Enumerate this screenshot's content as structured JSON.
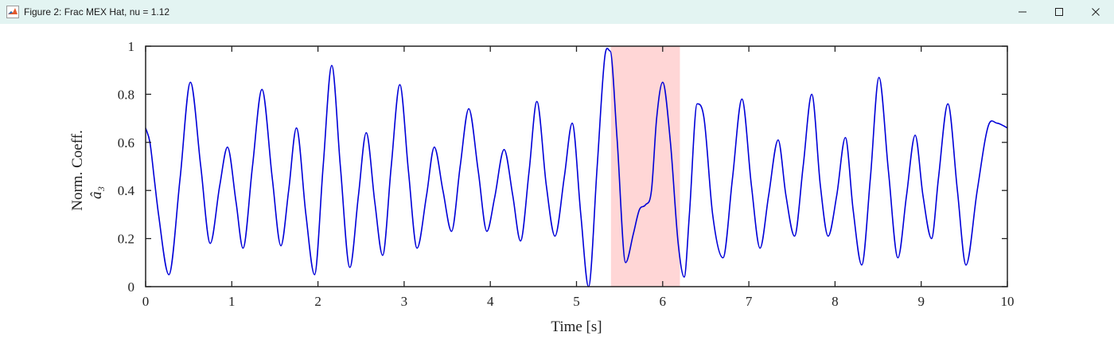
{
  "window": {
    "title": "Figure 2: Frac MEX Hat, nu = 1.12",
    "icon": "matlab-icon",
    "controls": [
      "minimize-icon",
      "maximize-icon",
      "close-icon"
    ]
  },
  "chart_data": {
    "type": "line",
    "title": "",
    "xlabel": "Time [s]",
    "ylabel_line1": "Norm. Coeff.",
    "ylabel_line2": "â₃",
    "xlim": [
      0,
      10
    ],
    "ylim": [
      0,
      1
    ],
    "xticks": [
      0,
      1,
      2,
      3,
      4,
      5,
      6,
      7,
      8,
      9,
      10
    ],
    "yticks": [
      0,
      0.2,
      0.4,
      0.6,
      0.8,
      1
    ],
    "xtick_labels": [
      "0",
      "1",
      "2",
      "3",
      "4",
      "5",
      "6",
      "7",
      "8",
      "9",
      "10"
    ],
    "ytick_labels": [
      "0",
      "0.2",
      "0.4",
      "0.6",
      "0.8",
      "1"
    ],
    "highlight": {
      "x_start": 5.4,
      "x_end": 6.2,
      "color": "#ffd6d6"
    },
    "line_color": "#0000d8",
    "grid": false,
    "series": [
      {
        "x": [
          0,
          0.05,
          0.1,
          0.15,
          0.27,
          0.4,
          0.52,
          0.64,
          0.75,
          0.86,
          0.95,
          1.05,
          1.13,
          1.24,
          1.35,
          1.47,
          1.57,
          1.66,
          1.75,
          1.86,
          1.96,
          2.06,
          2.16,
          2.26,
          2.37,
          2.47,
          2.56,
          2.66,
          2.75,
          2.85,
          2.95,
          3.05,
          3.15,
          3.26,
          3.35,
          3.45,
          3.55,
          3.65,
          3.75,
          3.86,
          3.96,
          4.05,
          4.16,
          4.26,
          4.35,
          4.45,
          4.54,
          4.65,
          4.75,
          4.86,
          4.95,
          5.05,
          5.14,
          5.24,
          5.33,
          5.39,
          5.47,
          5.57,
          5.66,
          5.73,
          5.8,
          5.87,
          5.93,
          6.0,
          6.09,
          6.18,
          6.25,
          6.31,
          6.4,
          6.48,
          6.58,
          6.7,
          6.81,
          6.92,
          7.03,
          7.13,
          7.23,
          7.34,
          7.43,
          7.53,
          7.63,
          7.73,
          7.83,
          7.92,
          8.02,
          8.12,
          8.21,
          8.31,
          8.41,
          8.51,
          8.62,
          8.73,
          8.83,
          8.93,
          9.02,
          9.12,
          9.2,
          9.31,
          9.42,
          9.52,
          9.65,
          9.78,
          9.88,
          9.95,
          10.0
        ],
        "y": [
          0.66,
          0.6,
          0.45,
          0.3,
          0.05,
          0.45,
          0.85,
          0.5,
          0.18,
          0.42,
          0.58,
          0.35,
          0.16,
          0.5,
          0.82,
          0.45,
          0.17,
          0.4,
          0.66,
          0.3,
          0.05,
          0.5,
          0.92,
          0.5,
          0.08,
          0.38,
          0.64,
          0.35,
          0.13,
          0.5,
          0.84,
          0.48,
          0.16,
          0.38,
          0.58,
          0.4,
          0.23,
          0.5,
          0.74,
          0.48,
          0.23,
          0.37,
          0.57,
          0.38,
          0.19,
          0.48,
          0.77,
          0.42,
          0.21,
          0.46,
          0.68,
          0.3,
          0.0,
          0.5,
          0.96,
          0.98,
          0.62,
          0.1,
          0.22,
          0.32,
          0.34,
          0.4,
          0.7,
          0.85,
          0.6,
          0.18,
          0.04,
          0.3,
          0.76,
          0.7,
          0.3,
          0.12,
          0.45,
          0.78,
          0.42,
          0.16,
          0.38,
          0.61,
          0.38,
          0.21,
          0.5,
          0.8,
          0.42,
          0.21,
          0.38,
          0.62,
          0.32,
          0.09,
          0.45,
          0.87,
          0.48,
          0.12,
          0.38,
          0.63,
          0.38,
          0.2,
          0.45,
          0.76,
          0.4,
          0.09,
          0.4,
          0.67,
          0.68,
          0.67,
          0.66
        ]
      }
    ]
  }
}
